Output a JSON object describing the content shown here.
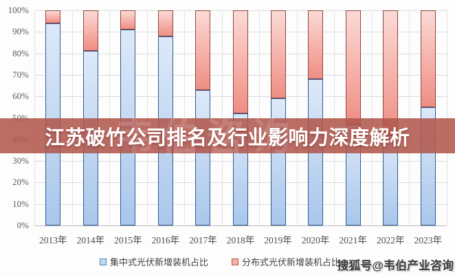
{
  "banner": {
    "title": "江苏破竹公司排名及行业影响力深度解析"
  },
  "watermarks": {
    "ghost": "韦伯咨询",
    "bottom_right": "搜狐号@韦伯产业咨询"
  },
  "chart_data": {
    "type": "bar",
    "stacked": true,
    "title": "",
    "xlabel": "",
    "ylabel": "",
    "ylim": [
      0,
      100
    ],
    "y_ticks": [
      "100%",
      "90%",
      "80%",
      "70%",
      "60%",
      "50%",
      "40%",
      "30%",
      "20%",
      "10%",
      "0%"
    ],
    "grid": true,
    "legend_position": "bottom",
    "categories": [
      "2013年",
      "2014年",
      "2015年",
      "2016年",
      "2017年",
      "2018年",
      "2019年",
      "2020年",
      "2021年",
      "2022年",
      "2023年"
    ],
    "series": [
      {
        "name": "集中式光伏新增装机占比",
        "color": "#c3d8f2",
        "border": "#2e5a8f",
        "values": [
          94,
          81,
          91,
          88,
          63,
          52,
          59,
          68,
          47,
          42,
          55
        ]
      },
      {
        "name": "分布式光伏新增装机占比",
        "color": "#f5b0a8",
        "border": "#8e4540",
        "values": [
          6,
          19,
          9,
          12,
          37,
          48,
          41,
          32,
          53,
          58,
          45
        ]
      }
    ]
  },
  "colors": {
    "banner_bg": "rgba(177,86,76,0.87)",
    "gridline": "#dcdcdc",
    "axis_text": "#595959",
    "centralized_fill": "#c3d8f2",
    "distributed_fill": "#f5b0a8"
  }
}
